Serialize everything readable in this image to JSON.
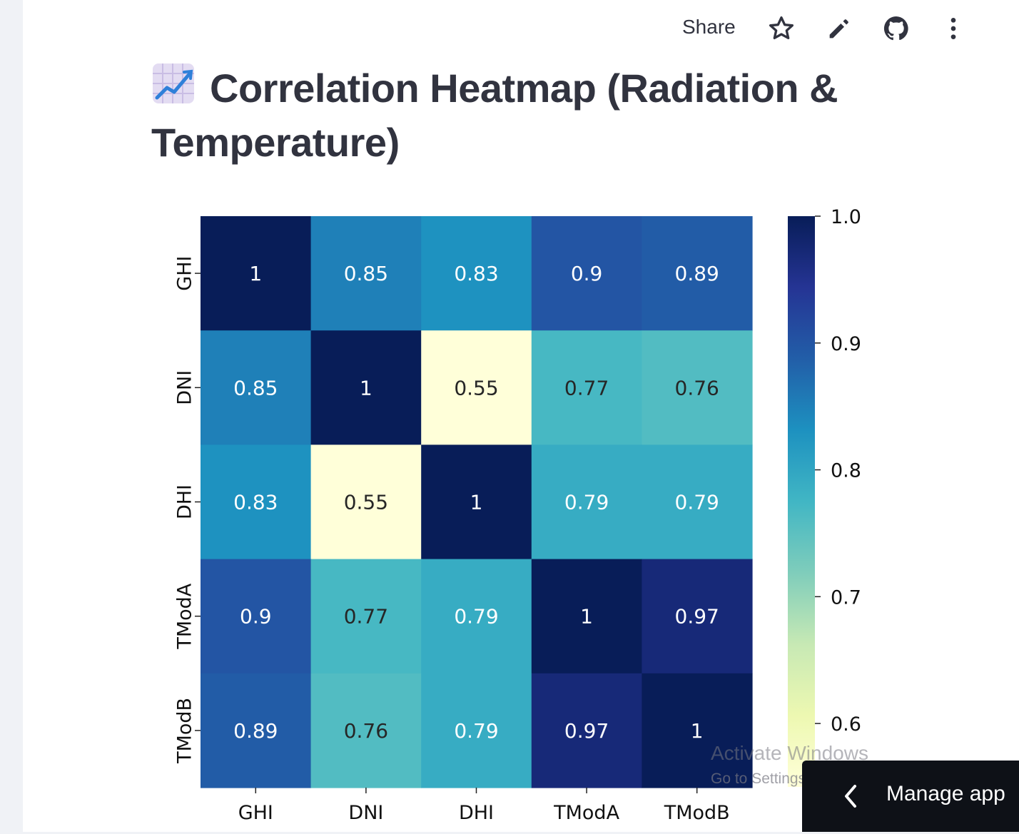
{
  "toolbar": {
    "share_label": "Share",
    "icons": [
      "star-icon",
      "pencil-icon",
      "github-icon",
      "more-vertical-icon"
    ]
  },
  "page": {
    "title_text": "Correlation Heatmap (Radiation & Temperature)",
    "title_emoji": "chart-increasing-icon"
  },
  "chart_data": {
    "type": "heatmap",
    "title": "",
    "xlabel": "",
    "ylabel": "",
    "x_labels": [
      "GHI",
      "DNI",
      "DHI",
      "TModA",
      "TModB"
    ],
    "y_labels": [
      "GHI",
      "DNI",
      "DHI",
      "TModA",
      "TModB"
    ],
    "values": [
      [
        1,
        0.85,
        0.83,
        0.9,
        0.89
      ],
      [
        0.85,
        1,
        0.55,
        0.77,
        0.76
      ],
      [
        0.83,
        0.55,
        1,
        0.79,
        0.79
      ],
      [
        0.9,
        0.77,
        0.79,
        1,
        0.97
      ],
      [
        0.89,
        0.76,
        0.79,
        0.97,
        1
      ]
    ],
    "annotations": [
      [
        "1",
        "0.85",
        "0.83",
        "0.9",
        "0.89"
      ],
      [
        "0.85",
        "1",
        "0.55",
        "0.77",
        "0.76"
      ],
      [
        "0.83",
        "0.55",
        "1",
        "0.79",
        "0.79"
      ],
      [
        "0.9",
        "0.77",
        "0.79",
        "1",
        "0.97"
      ],
      [
        "0.89",
        "0.76",
        "0.79",
        "0.97",
        "1"
      ]
    ],
    "colormap": "YlGnBu",
    "vmin": 0.55,
    "vmax": 1.0,
    "colorbar_ticks": [
      "1.0",
      "0.9",
      "0.8",
      "0.7",
      "0.6"
    ],
    "colorbar_tick_values": [
      1.0,
      0.9,
      0.8,
      0.7,
      0.6
    ]
  },
  "overlay": {
    "watermark_line1": "Activate Windows",
    "watermark_line2": "Go to Settings to activate Windows.",
    "manage_app_label": "Manage app"
  }
}
